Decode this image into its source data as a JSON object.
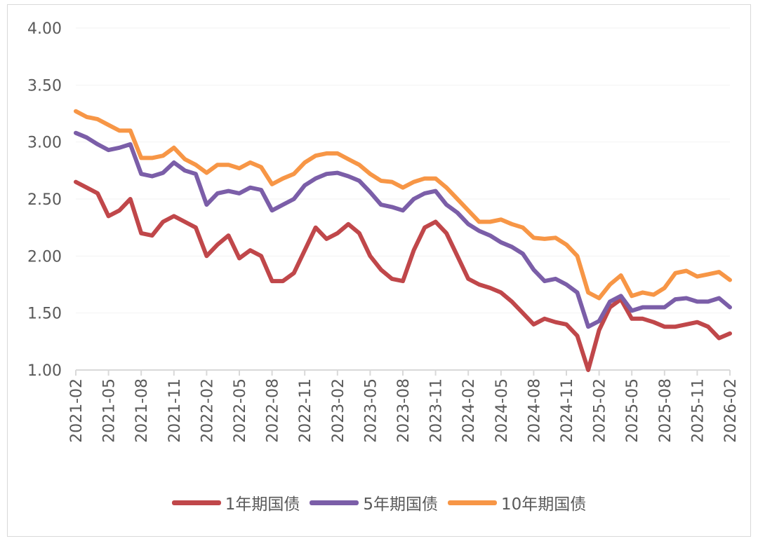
{
  "chart_data": {
    "type": "line",
    "title": "",
    "xlabel": "",
    "ylabel": "",
    "ylim": [
      1.0,
      4.0
    ],
    "yticks": [
      "1.00",
      "1.50",
      "2.00",
      "2.50",
      "3.00",
      "3.50",
      "4.00"
    ],
    "xticks": [
      "2021-02",
      "2021-05",
      "2021-08",
      "2021-11",
      "2022-02",
      "2022-05",
      "2022-08",
      "2022-11",
      "2023-02",
      "2023-05",
      "2023-08",
      "2023-11",
      "2024-02",
      "2024-05",
      "2024-08",
      "2024-11",
      "2025-02",
      "2025-05",
      "2025-08",
      "2025-11",
      "2026-02"
    ],
    "x_start": "2021-02",
    "x_step_months": 1,
    "legend_position": "bottom",
    "grid": true,
    "series": [
      {
        "name": "1年期国债",
        "color": "#c0474a",
        "values": [
          2.65,
          2.6,
          2.55,
          2.35,
          2.4,
          2.5,
          2.2,
          2.18,
          2.3,
          2.35,
          2.3,
          2.25,
          2.0,
          2.1,
          2.18,
          1.98,
          2.05,
          2.0,
          1.78,
          1.78,
          1.85,
          2.05,
          2.25,
          2.15,
          2.2,
          2.28,
          2.2,
          2.0,
          1.88,
          1.8,
          1.78,
          2.05,
          2.25,
          2.3,
          2.2,
          2.0,
          1.8,
          1.75,
          1.72,
          1.68,
          1.6,
          1.5,
          1.4,
          1.45,
          1.42,
          1.4,
          1.3,
          1.0,
          1.35,
          1.55,
          1.62,
          1.45,
          1.45,
          1.42,
          1.38,
          1.38,
          1.4,
          1.42,
          1.38,
          1.28,
          1.32
        ]
      },
      {
        "name": "5年期国债",
        "color": "#7b5ea8",
        "values": [
          3.08,
          3.04,
          2.98,
          2.93,
          2.95,
          2.98,
          2.72,
          2.7,
          2.73,
          2.82,
          2.75,
          2.72,
          2.45,
          2.55,
          2.57,
          2.55,
          2.6,
          2.58,
          2.4,
          2.45,
          2.5,
          2.62,
          2.68,
          2.72,
          2.73,
          2.7,
          2.66,
          2.56,
          2.45,
          2.43,
          2.4,
          2.5,
          2.55,
          2.57,
          2.45,
          2.38,
          2.28,
          2.22,
          2.18,
          2.12,
          2.08,
          2.02,
          1.88,
          1.78,
          1.8,
          1.75,
          1.68,
          1.38,
          1.43,
          1.6,
          1.65,
          1.52,
          1.55,
          1.55,
          1.55,
          1.62,
          1.63,
          1.6,
          1.6,
          1.63,
          1.55
        ]
      },
      {
        "name": "10年期国债",
        "color": "#f79646",
        "values": [
          3.27,
          3.22,
          3.2,
          3.15,
          3.1,
          3.1,
          2.86,
          2.86,
          2.88,
          2.95,
          2.85,
          2.8,
          2.73,
          2.8,
          2.8,
          2.77,
          2.82,
          2.78,
          2.63,
          2.68,
          2.72,
          2.82,
          2.88,
          2.9,
          2.9,
          2.85,
          2.8,
          2.72,
          2.66,
          2.65,
          2.6,
          2.65,
          2.68,
          2.68,
          2.6,
          2.5,
          2.4,
          2.3,
          2.3,
          2.32,
          2.28,
          2.25,
          2.16,
          2.15,
          2.16,
          2.1,
          2.0,
          1.68,
          1.63,
          1.75,
          1.83,
          1.65,
          1.68,
          1.66,
          1.72,
          1.85,
          1.87,
          1.82,
          1.84,
          1.86,
          1.79
        ]
      }
    ]
  }
}
